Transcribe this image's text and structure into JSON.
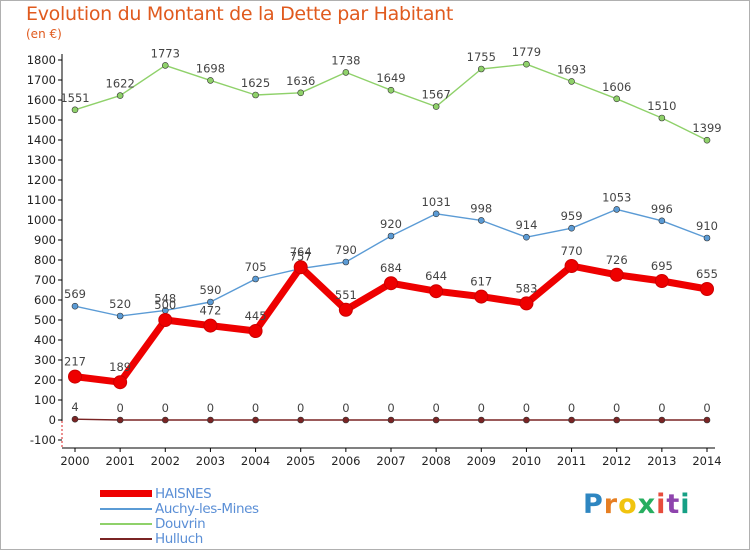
{
  "title": "Evolution du Montant de la Dette par Habitant",
  "subtitle": "(en €)",
  "logo": {
    "text": "Proxiti",
    "colors": [
      "#2e86c1",
      "#e67e22",
      "#f1c40f",
      "#27ae60",
      "#e74c3c",
      "#8e44ad",
      "#16a085"
    ]
  },
  "chart_data": {
    "type": "line",
    "x": [
      "2000",
      "2001",
      "2002",
      "2003",
      "2004",
      "2005",
      "2006",
      "2007",
      "2008",
      "2009",
      "2010",
      "2011",
      "2012",
      "2013",
      "2014"
    ],
    "ylim": [
      -100,
      1800
    ],
    "yticks": [
      -100,
      0,
      100,
      200,
      300,
      400,
      500,
      600,
      700,
      800,
      900,
      1000,
      1100,
      1200,
      1300,
      1400,
      1500,
      1600,
      1700,
      1800
    ],
    "grid": false,
    "legend_position": "bottom-left",
    "series": [
      {
        "name": "HAISNES",
        "color": "#ee0000",
        "values": [
          217,
          189,
          500,
          472,
          445,
          764,
          551,
          684,
          644,
          617,
          583,
          770,
          726,
          695,
          655
        ]
      },
      {
        "name": "Auchy-les-Mines",
        "color": "#5b9bd5",
        "values": [
          569,
          520,
          548,
          590,
          705,
          757,
          790,
          920,
          1031,
          998,
          914,
          959,
          1053,
          996,
          910
        ]
      },
      {
        "name": "Douvrin",
        "color": "#8fd16a",
        "values": [
          1551,
          1622,
          1773,
          1698,
          1625,
          1636,
          1738,
          1649,
          1567,
          1755,
          1779,
          1693,
          1606,
          1510,
          1399
        ]
      },
      {
        "name": "Hulluch",
        "color": "#7a2424",
        "values": [
          4,
          0,
          0,
          0,
          0,
          0,
          0,
          0,
          0,
          0,
          0,
          0,
          0,
          0,
          0
        ]
      }
    ]
  }
}
